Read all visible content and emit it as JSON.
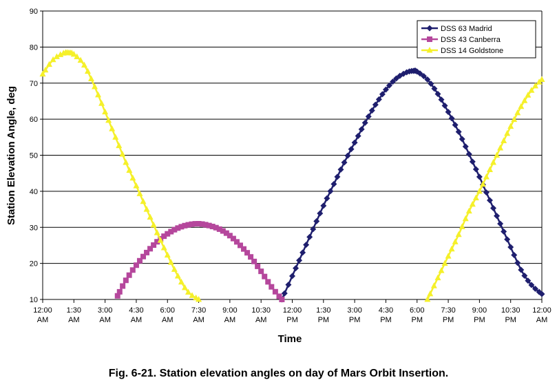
{
  "caption": "Fig. 6-21. Station elevation angles on day of Mars Orbit Insertion.",
  "chart_data": {
    "type": "line",
    "xlabel": "Time",
    "ylabel": "Station Elevation Angle, deg",
    "xlim": [
      0,
      24
    ],
    "ylim": [
      10,
      90
    ],
    "ytick_step": 10,
    "grid": "horizontal",
    "legend_position": "top-right",
    "xticks": [
      {
        "x": 0,
        "line1": "12:00",
        "line2": "AM"
      },
      {
        "x": 1.5,
        "line1": "1:30",
        "line2": "AM"
      },
      {
        "x": 3,
        "line1": "3:00",
        "line2": "AM"
      },
      {
        "x": 4.5,
        "line1": "4:30",
        "line2": "AM"
      },
      {
        "x": 6,
        "line1": "6:00",
        "line2": "AM"
      },
      {
        "x": 7.5,
        "line1": "7:30",
        "line2": "AM"
      },
      {
        "x": 9,
        "line1": "9:00",
        "line2": "AM"
      },
      {
        "x": 10.5,
        "line1": "10:30",
        "line2": "AM"
      },
      {
        "x": 12,
        "line1": "12:00",
        "line2": "PM"
      },
      {
        "x": 13.5,
        "line1": "1:30",
        "line2": "PM"
      },
      {
        "x": 15,
        "line1": "3:00",
        "line2": "PM"
      },
      {
        "x": 16.5,
        "line1": "4:30",
        "line2": "PM"
      },
      {
        "x": 18,
        "line1": "6:00",
        "line2": "PM"
      },
      {
        "x": 19.5,
        "line1": "7:30",
        "line2": "PM"
      },
      {
        "x": 21,
        "line1": "9:00",
        "line2": "PM"
      },
      {
        "x": 22.5,
        "line1": "10:30",
        "line2": "PM"
      },
      {
        "x": 24,
        "line1": "12:00",
        "line2": "AM"
      }
    ],
    "series": [
      {
        "name": "DSS 63 Madrid",
        "color": "#1f1f6e",
        "marker": "diamond",
        "x": [
          11.5,
          12.0,
          12.5,
          13.0,
          13.5,
          14.0,
          14.5,
          15.0,
          15.5,
          16.0,
          16.5,
          17.0,
          17.5,
          17.83,
          18.0,
          18.5,
          19.0,
          19.5,
          20.0,
          20.5,
          21.0,
          21.5,
          22.0,
          22.5,
          23.0,
          23.5,
          24.0
        ],
        "y": [
          10.0,
          16.5,
          23.0,
          29.5,
          36.0,
          42.0,
          48.0,
          53.5,
          59.0,
          64.0,
          68.2,
          71.3,
          73.0,
          73.4,
          73.2,
          71.0,
          67.0,
          62.0,
          56.5,
          50.3,
          44.0,
          37.5,
          31.0,
          24.5,
          18.2,
          14.0,
          11.5
        ]
      },
      {
        "name": "DSS 43 Canberra",
        "color": "#b5479c",
        "marker": "square",
        "x": [
          3.6,
          4.0,
          4.5,
          5.0,
          5.5,
          6.0,
          6.5,
          7.0,
          7.5,
          8.0,
          8.5,
          9.0,
          9.5,
          10.0,
          10.5,
          11.0,
          11.5
        ],
        "y": [
          11.0,
          15.3,
          19.5,
          23.0,
          26.0,
          28.2,
          29.8,
          30.7,
          31.0,
          30.5,
          29.5,
          27.7,
          25.0,
          21.8,
          17.8,
          13.5,
          10.0
        ]
      },
      {
        "name": "DSS 14 Goldstone",
        "color": "#f5f02a",
        "marker": "triangle",
        "x": [
          0.0,
          0.5,
          1.0,
          1.25,
          1.5,
          2.0,
          2.5,
          3.0,
          3.5,
          4.0,
          4.5,
          5.0,
          5.5,
          6.0,
          6.5,
          7.0,
          7.5,
          18.5,
          19.0,
          19.5,
          20.0,
          20.5,
          21.0,
          21.5,
          22.0,
          22.5,
          23.0,
          23.5,
          24.0
        ],
        "y": [
          72.5,
          76.5,
          78.3,
          78.4,
          78.0,
          75.0,
          69.0,
          62.0,
          55.0,
          48.0,
          41.5,
          35.0,
          28.5,
          22.3,
          16.5,
          12.0,
          10.0,
          10.0,
          16.0,
          22.0,
          28.0,
          34.5,
          40.0,
          46.0,
          52.0,
          58.0,
          63.5,
          68.0,
          71.0
        ]
      }
    ]
  }
}
